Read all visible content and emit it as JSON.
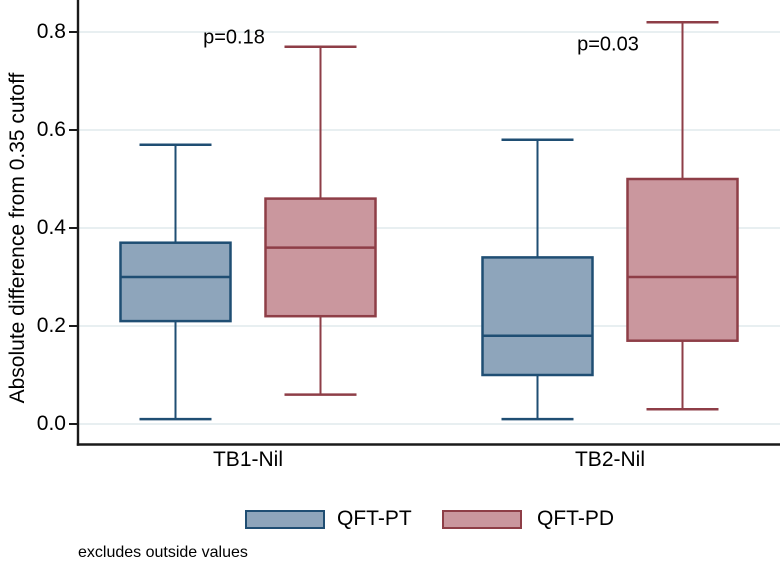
{
  "chart_data": {
    "type": "boxplot",
    "title": "",
    "ylabel": "Absolute difference from 0.35 cutoff",
    "xlabel": "",
    "ylim": [
      0,
      0.85
    ],
    "yticks": [
      "0.0",
      "0.2",
      "0.4",
      "0.6",
      "0.8"
    ],
    "grid": true,
    "legend_position": "bottom-center",
    "groups": [
      "TB1-Nil",
      "TB2-Nil"
    ],
    "series": [
      {
        "name": "QFT-PT",
        "fill": "#8EA5BB",
        "stroke": "#1F4E73",
        "boxes": [
          {
            "group": "TB1-Nil",
            "whisker_low": 0.01,
            "q1": 0.21,
            "median": 0.3,
            "q3": 0.37,
            "whisker_high": 0.57
          },
          {
            "group": "TB2-Nil",
            "whisker_low": 0.01,
            "q1": 0.1,
            "median": 0.18,
            "q3": 0.34,
            "whisker_high": 0.58
          }
        ]
      },
      {
        "name": "QFT-PD",
        "fill": "#CA979E",
        "stroke": "#8E3E47",
        "boxes": [
          {
            "group": "TB1-Nil",
            "whisker_low": 0.06,
            "q1": 0.22,
            "median": 0.36,
            "q3": 0.46,
            "whisker_high": 0.77
          },
          {
            "group": "TB2-Nil",
            "whisker_low": 0.03,
            "q1": 0.17,
            "median": 0.3,
            "q3": 0.5,
            "whisker_high": 0.82
          }
        ]
      }
    ],
    "annotations": [
      {
        "text": "p=0.18",
        "group": "TB1-Nil"
      },
      {
        "text": "p=0.03",
        "group": "TB2-Nil"
      }
    ],
    "legend": [
      {
        "label": "QFT-PT",
        "fill": "#8EA5BB",
        "stroke": "#1F4E73"
      },
      {
        "label": "QFT-PD",
        "fill": "#CA979E",
        "stroke": "#8E3E47"
      }
    ],
    "footnote": "excludes outside values",
    "colors": {
      "grid": "#E8EFF1",
      "axis": "#1A1A1A",
      "background": "#FFFFFF"
    }
  }
}
